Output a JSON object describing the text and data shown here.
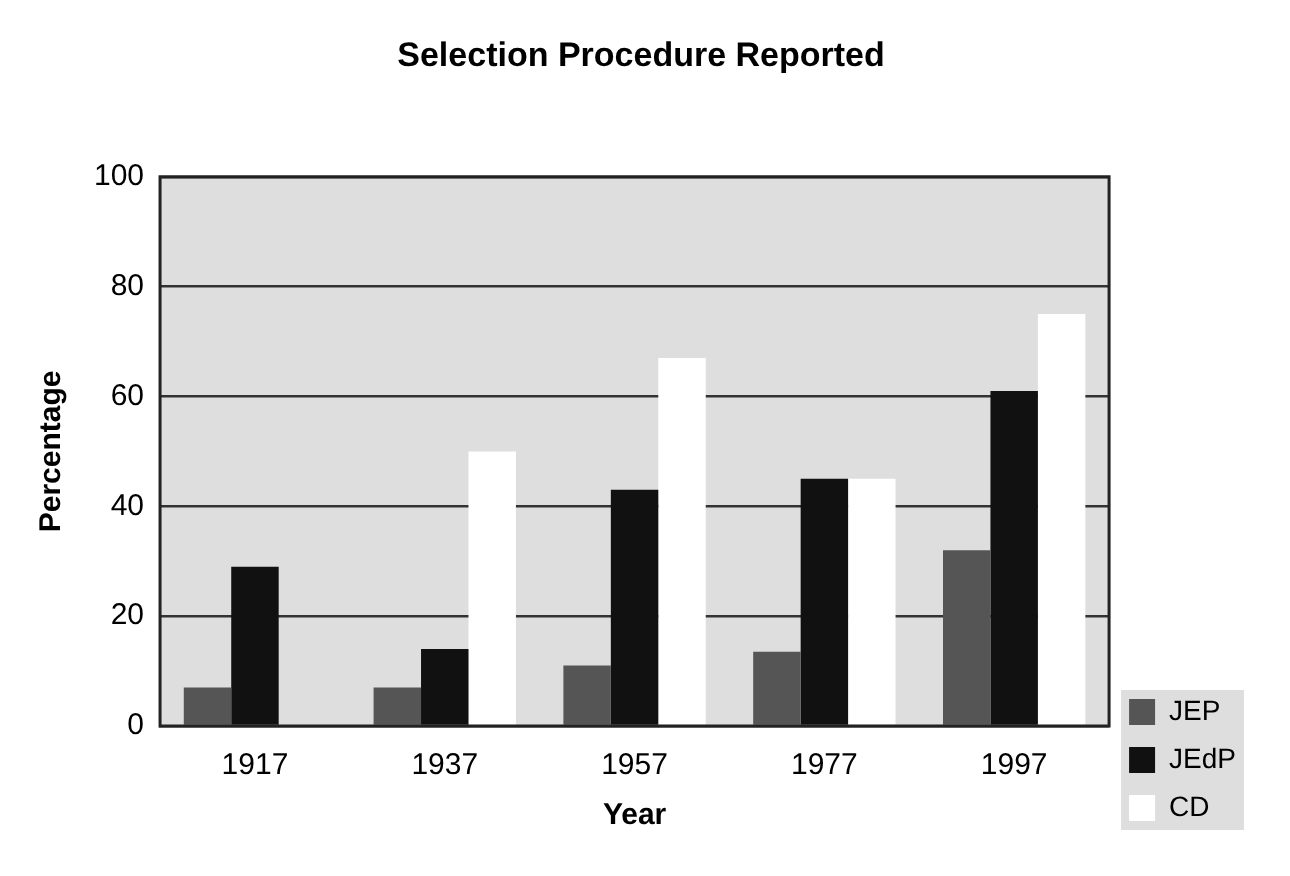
{
  "chart_data": {
    "type": "bar",
    "title": "Selection Procedure Reported",
    "xlabel": "Year",
    "ylabel": "Percentage",
    "categories": [
      "1917",
      "1937",
      "1957",
      "1977",
      "1997"
    ],
    "series": [
      {
        "name": "JEP",
        "color": "#555555",
        "values": [
          7,
          7,
          11,
          13.5,
          32
        ]
      },
      {
        "name": "JEdP",
        "color": "#111111",
        "values": [
          29,
          14,
          43,
          45,
          61
        ]
      },
      {
        "name": "CD",
        "color": "#ffffff",
        "values": [
          null,
          50,
          67,
          45,
          75
        ]
      }
    ],
    "ylim": [
      0,
      100
    ],
    "yticks": [
      0,
      20,
      40,
      60,
      80,
      100
    ],
    "grid": "y",
    "legend": "bottom right"
  }
}
